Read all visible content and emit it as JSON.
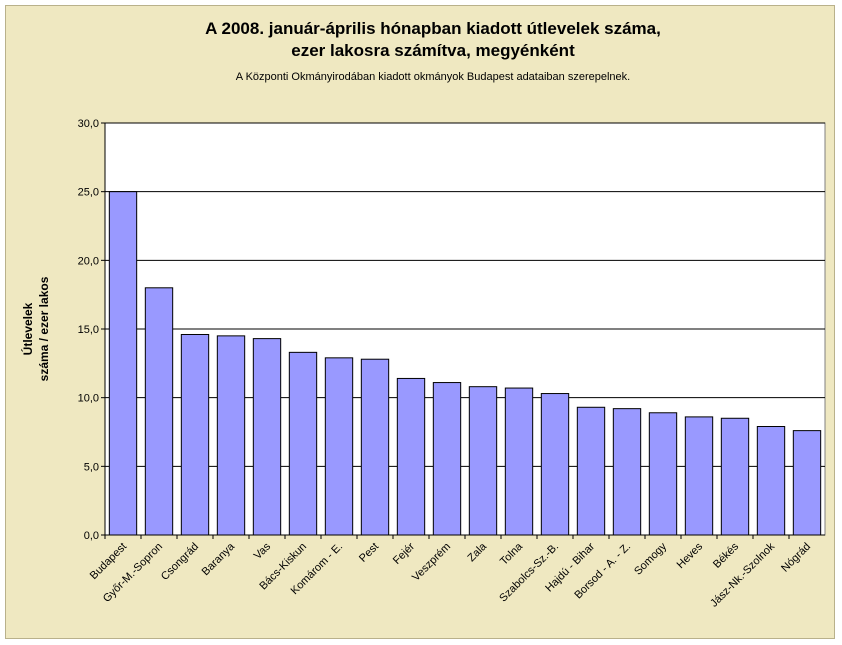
{
  "colors": {
    "background": "#efe8c1",
    "plot_area": "#ffffff",
    "bar_fill": "#9999ff",
    "bar_stroke": "#000000",
    "grid": "#000000"
  },
  "chart_data": {
    "type": "bar",
    "title_lines": [
      "A 2008. január-április hónapban kiadott útlevelek száma,",
      "ezer lakosra számítva, megyénként"
    ],
    "subtitle": "A Központi Okmányirodában kiadott okmányok Budapest adataiban szerepelnek.",
    "xlabel": "",
    "ylabel_lines": [
      "Útlevelek",
      "száma / ezer lakos"
    ],
    "ylim": [
      0,
      30
    ],
    "yticks": [
      "0,0",
      "5,0",
      "10,0",
      "15,0",
      "20,0",
      "25,0",
      "30,0"
    ],
    "ytick_values": [
      0,
      5,
      10,
      15,
      20,
      25,
      30
    ],
    "grid": true,
    "legend": "none",
    "categories": [
      "Budapest",
      "Győr-M.-Sopron",
      "Csongrád",
      "Baranya",
      "Vas",
      "Bács-Kiskun",
      "Komárom - E.",
      "Pest",
      "Fejér",
      "Veszprém",
      "Zala",
      "Tolna",
      "Szabolcs-Sz.-B.",
      "Hajdú - Bihar",
      "Borsod - A. - Z.",
      "Somogy",
      "Heves",
      "Békés",
      "Jász-Nk.-Szolnok",
      "Nógrád"
    ],
    "values": [
      25.0,
      18.0,
      14.6,
      14.5,
      14.3,
      13.3,
      12.9,
      12.8,
      11.4,
      11.1,
      10.8,
      10.7,
      10.3,
      9.3,
      9.2,
      8.9,
      8.6,
      8.5,
      7.9,
      7.6
    ]
  }
}
